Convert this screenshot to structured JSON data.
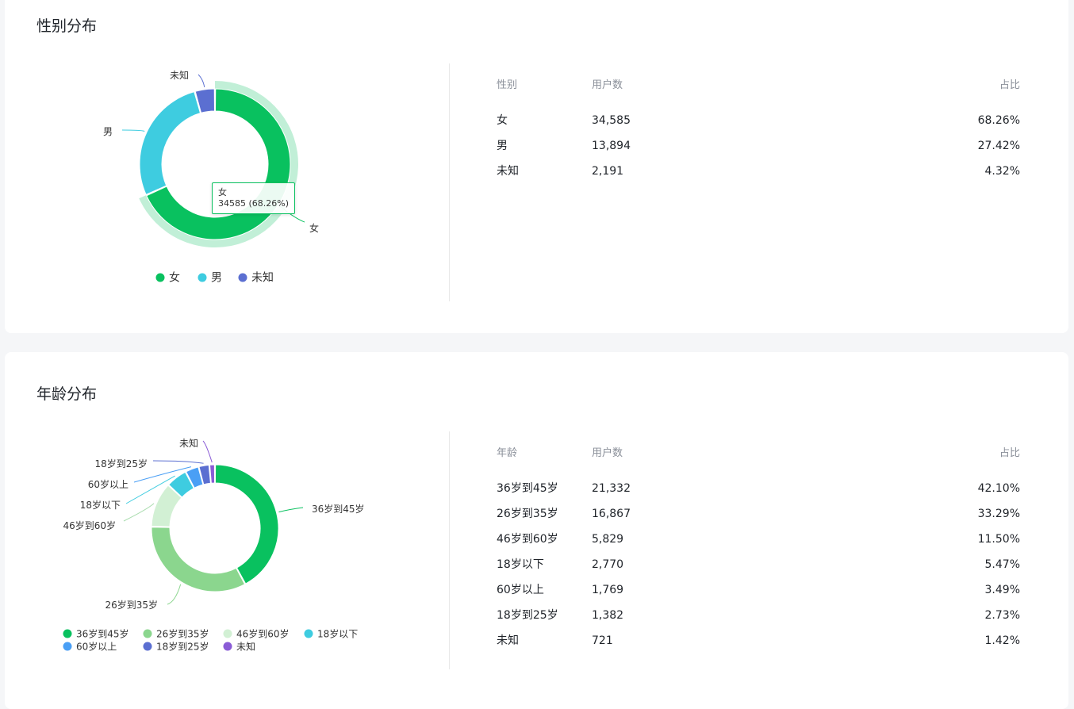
{
  "gender_section": {
    "title": "性别分布",
    "table_headers": [
      "性别",
      "用户数",
      "占比"
    ],
    "rows": [
      {
        "label": "女",
        "count": "34,585",
        "pct": "68.26%"
      },
      {
        "label": "男",
        "count": "13,894",
        "pct": "27.42%"
      },
      {
        "label": "未知",
        "count": "2,191",
        "pct": "4.32%"
      }
    ],
    "tooltip": {
      "name": "女",
      "value": "34585 (68.26%)"
    }
  },
  "age_section": {
    "title": "年龄分布",
    "table_headers": [
      "年龄",
      "用户数",
      "占比"
    ],
    "rows": [
      {
        "label": "36岁到45岁",
        "count": "21,332",
        "pct": "42.10%"
      },
      {
        "label": "26岁到35岁",
        "count": "16,867",
        "pct": "33.29%"
      },
      {
        "label": "46岁到60岁",
        "count": "5,829",
        "pct": "11.50%"
      },
      {
        "label": "18岁以下",
        "count": "2,770",
        "pct": "5.47%"
      },
      {
        "label": "60岁以上",
        "count": "1,769",
        "pct": "3.49%"
      },
      {
        "label": "18岁到25岁",
        "count": "1,382",
        "pct": "2.73%"
      },
      {
        "label": "未知",
        "count": "721",
        "pct": "1.42%"
      }
    ]
  },
  "chart_data": [
    {
      "type": "pie",
      "variant": "donut",
      "categories": [
        "女",
        "男",
        "未知"
      ],
      "values": [
        34585,
        13894,
        2191
      ],
      "colors": [
        "#09c15f",
        "#3ecce0",
        "#5b6fd1"
      ],
      "highlighted": "女",
      "legend": [
        "女",
        "男",
        "未知"
      ],
      "legend_position": "bottom"
    },
    {
      "type": "pie",
      "variant": "donut",
      "categories": [
        "36岁到45岁",
        "26岁到35岁",
        "46岁到60岁",
        "18岁以下",
        "60岁以上",
        "18岁到25岁",
        "未知"
      ],
      "values": [
        21332,
        16867,
        5829,
        2770,
        1769,
        1382,
        721
      ],
      "colors": [
        "#09c15f",
        "#8bd68e",
        "#d2f0d4",
        "#3ecce0",
        "#4a9ff5",
        "#5b6fd1",
        "#8a5cd6"
      ],
      "legend": [
        "36岁到45岁",
        "26岁到35岁",
        "46岁到60岁",
        "18岁以下",
        "60岁以上",
        "18岁到25岁",
        "未知"
      ],
      "legend_position": "bottom"
    }
  ]
}
